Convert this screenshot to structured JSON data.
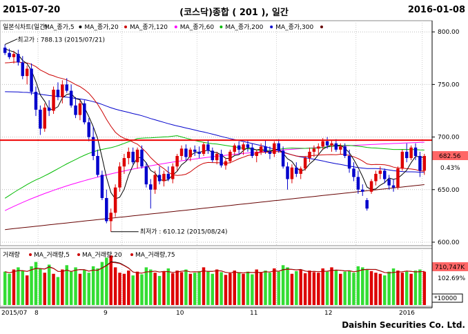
{
  "header": {
    "start_date": "2015-07-20",
    "title": "(코스닥)종합 ( 201 ), 일간",
    "end_date": "2016-01-08"
  },
  "footer": {
    "company": "Daishin Securities Co. Ltd."
  },
  "colors": {
    "up": "#dd0000",
    "down": "#0000cc",
    "ma5": "#000000",
    "ma20": "#cc0000",
    "ma60": "#00bb00",
    "ma120": "#ff00ff",
    "ma200": "#0000cc",
    "ma300": "#660000",
    "resistance": "#ee0000",
    "volume_up": "#dd0000",
    "volume_down": "#33dd33"
  },
  "chart_data": [
    {
      "type": "candlestick",
      "title": "일본식차트(일간)",
      "legend": [
        "MA_종가,5",
        "MA_종가,20",
        "MA_종가,120",
        "MA_종가,60",
        "MA_종가,200",
        "MA_종가,300"
      ],
      "y_ticks": [
        "800.00",
        "750.00",
        "700.00",
        "650.00",
        "600.00"
      ],
      "ylim": [
        598,
        808
      ],
      "resistance_level": 697,
      "last_price": "682.56",
      "last_change": "0.43%",
      "high_label": "최고가 : 788.13 (2015/07/21)",
      "low_label": "최저가 : 610.12 (2015/08/24)",
      "candles": [
        {
          "o": 785,
          "h": 788,
          "l": 778,
          "c": 780
        },
        {
          "o": 780,
          "h": 784,
          "l": 774,
          "c": 776
        },
        {
          "o": 776,
          "h": 782,
          "l": 770,
          "c": 779
        },
        {
          "o": 779,
          "h": 783,
          "l": 768,
          "c": 771
        },
        {
          "o": 771,
          "h": 777,
          "l": 755,
          "c": 758
        },
        {
          "o": 758,
          "h": 768,
          "l": 750,
          "c": 765
        },
        {
          "o": 765,
          "h": 770,
          "l": 740,
          "c": 743
        },
        {
          "o": 743,
          "h": 748,
          "l": 720,
          "c": 726
        },
        {
          "o": 726,
          "h": 730,
          "l": 702,
          "c": 708
        },
        {
          "o": 708,
          "h": 732,
          "l": 705,
          "c": 728
        },
        {
          "o": 728,
          "h": 735,
          "l": 720,
          "c": 725
        },
        {
          "o": 725,
          "h": 748,
          "l": 722,
          "c": 745
        },
        {
          "o": 745,
          "h": 752,
          "l": 735,
          "c": 738
        },
        {
          "o": 738,
          "h": 754,
          "l": 732,
          "c": 750
        },
        {
          "o": 750,
          "h": 756,
          "l": 742,
          "c": 744
        },
        {
          "o": 744,
          "h": 750,
          "l": 728,
          "c": 730
        },
        {
          "o": 730,
          "h": 738,
          "l": 718,
          "c": 721
        },
        {
          "o": 721,
          "h": 735,
          "l": 716,
          "c": 732
        },
        {
          "o": 732,
          "h": 735,
          "l": 712,
          "c": 714
        },
        {
          "o": 714,
          "h": 718,
          "l": 696,
          "c": 700
        },
        {
          "o": 700,
          "h": 710,
          "l": 678,
          "c": 682
        },
        {
          "o": 682,
          "h": 688,
          "l": 662,
          "c": 664
        },
        {
          "o": 664,
          "h": 668,
          "l": 640,
          "c": 642
        },
        {
          "o": 642,
          "h": 650,
          "l": 618,
          "c": 620
        },
        {
          "o": 620,
          "h": 632,
          "l": 610,
          "c": 628
        },
        {
          "o": 628,
          "h": 655,
          "l": 624,
          "c": 652
        },
        {
          "o": 652,
          "h": 676,
          "l": 648,
          "c": 672
        },
        {
          "o": 672,
          "h": 684,
          "l": 665,
          "c": 680
        },
        {
          "o": 680,
          "h": 690,
          "l": 674,
          "c": 686
        },
        {
          "o": 686,
          "h": 690,
          "l": 674,
          "c": 676
        },
        {
          "o": 676,
          "h": 690,
          "l": 670,
          "c": 688
        },
        {
          "o": 688,
          "h": 692,
          "l": 670,
          "c": 672
        },
        {
          "o": 672,
          "h": 676,
          "l": 652,
          "c": 655
        },
        {
          "o": 655,
          "h": 660,
          "l": 632,
          "c": 650
        },
        {
          "o": 650,
          "h": 668,
          "l": 646,
          "c": 664
        },
        {
          "o": 664,
          "h": 672,
          "l": 655,
          "c": 658
        },
        {
          "o": 658,
          "h": 668,
          "l": 653,
          "c": 665
        },
        {
          "o": 665,
          "h": 672,
          "l": 658,
          "c": 660
        },
        {
          "o": 660,
          "h": 675,
          "l": 656,
          "c": 672
        },
        {
          "o": 672,
          "h": 684,
          "l": 668,
          "c": 682
        },
        {
          "o": 682,
          "h": 692,
          "l": 678,
          "c": 689
        },
        {
          "o": 689,
          "h": 693,
          "l": 678,
          "c": 681
        },
        {
          "o": 681,
          "h": 690,
          "l": 677,
          "c": 688
        },
        {
          "o": 688,
          "h": 692,
          "l": 682,
          "c": 686
        },
        {
          "o": 686,
          "h": 691,
          "l": 680,
          "c": 684
        },
        {
          "o": 684,
          "h": 695,
          "l": 682,
          "c": 693
        },
        {
          "o": 693,
          "h": 697,
          "l": 684,
          "c": 687
        },
        {
          "o": 687,
          "h": 690,
          "l": 676,
          "c": 678
        },
        {
          "o": 678,
          "h": 686,
          "l": 674,
          "c": 684
        },
        {
          "o": 684,
          "h": 688,
          "l": 671,
          "c": 673
        },
        {
          "o": 673,
          "h": 680,
          "l": 669,
          "c": 677
        },
        {
          "o": 677,
          "h": 688,
          "l": 675,
          "c": 686
        },
        {
          "o": 686,
          "h": 694,
          "l": 683,
          "c": 692
        },
        {
          "o": 692,
          "h": 696,
          "l": 684,
          "c": 688
        },
        {
          "o": 688,
          "h": 695,
          "l": 683,
          "c": 693
        },
        {
          "o": 693,
          "h": 697,
          "l": 686,
          "c": 690
        },
        {
          "o": 690,
          "h": 694,
          "l": 680,
          "c": 682
        },
        {
          "o": 682,
          "h": 688,
          "l": 676,
          "c": 686
        },
        {
          "o": 686,
          "h": 694,
          "l": 683,
          "c": 691
        },
        {
          "o": 691,
          "h": 697,
          "l": 684,
          "c": 686
        },
        {
          "o": 686,
          "h": 691,
          "l": 679,
          "c": 684
        },
        {
          "o": 684,
          "h": 696,
          "l": 681,
          "c": 694
        },
        {
          "o": 694,
          "h": 698,
          "l": 685,
          "c": 687
        },
        {
          "o": 687,
          "h": 691,
          "l": 670,
          "c": 672
        },
        {
          "o": 672,
          "h": 676,
          "l": 650,
          "c": 660
        },
        {
          "o": 660,
          "h": 674,
          "l": 656,
          "c": 671
        },
        {
          "o": 671,
          "h": 676,
          "l": 662,
          "c": 665
        },
        {
          "o": 665,
          "h": 672,
          "l": 660,
          "c": 670
        },
        {
          "o": 670,
          "h": 682,
          "l": 668,
          "c": 680
        },
        {
          "o": 680,
          "h": 690,
          "l": 676,
          "c": 686
        },
        {
          "o": 686,
          "h": 692,
          "l": 681,
          "c": 689
        },
        {
          "o": 689,
          "h": 694,
          "l": 683,
          "c": 691
        },
        {
          "o": 691,
          "h": 699,
          "l": 688,
          "c": 696
        },
        {
          "o": 696,
          "h": 700,
          "l": 689,
          "c": 692
        },
        {
          "o": 692,
          "h": 697,
          "l": 686,
          "c": 694
        },
        {
          "o": 694,
          "h": 698,
          "l": 686,
          "c": 688
        },
        {
          "o": 688,
          "h": 694,
          "l": 684,
          "c": 691
        },
        {
          "o": 691,
          "h": 694,
          "l": 680,
          "c": 682
        },
        {
          "o": 682,
          "h": 688,
          "l": 666,
          "c": 670
        },
        {
          "o": 670,
          "h": 676,
          "l": 658,
          "c": 662
        },
        {
          "o": 662,
          "h": 668,
          "l": 646,
          "c": 650
        },
        {
          "o": 650,
          "h": 655,
          "l": 644,
          "c": 648
        },
        {
          "o": 640,
          "h": 642,
          "l": 630,
          "c": 632
        },
        {
          "o": 648,
          "h": 660,
          "l": 646,
          "c": 658
        },
        {
          "o": 658,
          "h": 668,
          "l": 654,
          "c": 665
        },
        {
          "o": 665,
          "h": 672,
          "l": 660,
          "c": 668
        },
        {
          "o": 668,
          "h": 670,
          "l": 656,
          "c": 660
        },
        {
          "o": 660,
          "h": 664,
          "l": 650,
          "c": 654
        },
        {
          "o": 654,
          "h": 660,
          "l": 648,
          "c": 652
        },
        {
          "o": 652,
          "h": 672,
          "l": 650,
          "c": 670
        },
        {
          "o": 670,
          "h": 688,
          "l": 668,
          "c": 686
        },
        {
          "o": 686,
          "h": 694,
          "l": 676,
          "c": 680
        },
        {
          "o": 680,
          "h": 692,
          "l": 678,
          "c": 690
        },
        {
          "o": 690,
          "h": 694,
          "l": 678,
          "c": 682
        },
        {
          "o": 682,
          "h": 686,
          "l": 662,
          "c": 668
        },
        {
          "o": 668,
          "h": 684,
          "l": 664,
          "c": 682
        }
      ]
    },
    {
      "type": "bar",
      "title": "거래량",
      "legend": [
        "MA_거래량,5",
        "MA_거래량,20",
        "MA_거래량,75"
      ],
      "last_value": "710,747K",
      "last_change": "102.69%",
      "unit_label": "*10000",
      "x_tick_labels": [
        "2015/07",
        "8",
        "9",
        "10",
        "11",
        "12",
        "2016"
      ],
      "volumes": [
        62,
        58,
        66,
        70,
        64,
        55,
        72,
        80,
        68,
        60,
        75,
        58,
        52,
        66,
        74,
        62,
        70,
        58,
        65,
        60,
        72,
        68,
        80,
        88,
        92,
        70,
        60,
        58,
        64,
        55,
        62,
        57,
        70,
        66,
        60,
        54,
        62,
        68,
        59,
        64,
        61,
        66,
        58,
        60,
        63,
        70,
        62,
        58,
        66,
        61,
        56,
        59,
        64,
        61,
        58,
        62,
        57,
        66,
        60,
        64,
        60,
        68,
        62,
        74,
        70,
        58,
        63,
        66,
        59,
        64,
        61,
        60,
        68,
        62,
        70,
        65,
        58,
        62,
        64,
        60,
        72,
        70,
        66,
        63,
        60,
        58,
        55,
        62,
        68,
        64,
        60,
        62,
        58,
        64,
        66,
        62
      ]
    }
  ]
}
